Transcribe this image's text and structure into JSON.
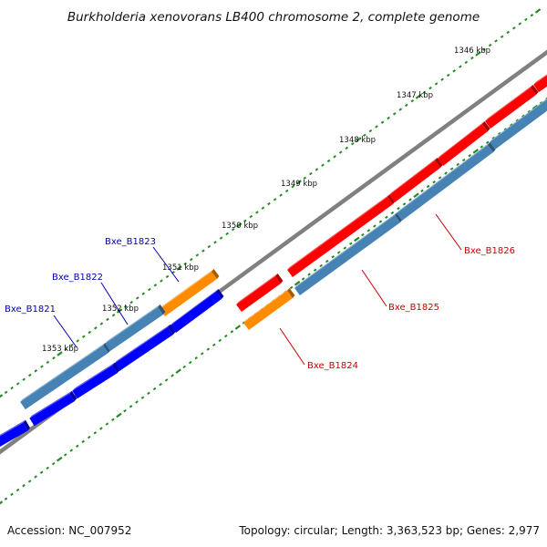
{
  "title": "Burkholderia xenovorans LB400 chromosome 2, complete genome",
  "footer": {
    "accession": "Accession: NC_007952",
    "summary": "Topology: circular; Length: 3,363,523 bp; Genes: 2,977"
  },
  "colors": {
    "backbone": "#808080",
    "tick_dots": "#228B22",
    "cds_forward": "#FF0000",
    "cds_reverse": "#0000FF",
    "gene_track": "#4682B4",
    "rna_gene": "#FF8C00",
    "label_forward": "#CC0000",
    "label_reverse": "#0000AA"
  },
  "scale_labels": [
    "1346 kbp",
    "1347 kbp",
    "1348 kbp",
    "1349 kbp",
    "1350 kbp",
    "1351 kbp",
    "1352 kbp",
    "1353 kbp"
  ],
  "gene_labels": [
    {
      "name": "Bxe_B1823",
      "strand": "reverse"
    },
    {
      "name": "Bxe_B1822",
      "strand": "reverse"
    },
    {
      "name": "Bxe_B1821",
      "strand": "reverse"
    },
    {
      "name": "Bxe_B1824",
      "strand": "forward"
    },
    {
      "name": "Bxe_B1825",
      "strand": "forward"
    },
    {
      "name": "Bxe_B1826",
      "strand": "forward"
    }
  ]
}
